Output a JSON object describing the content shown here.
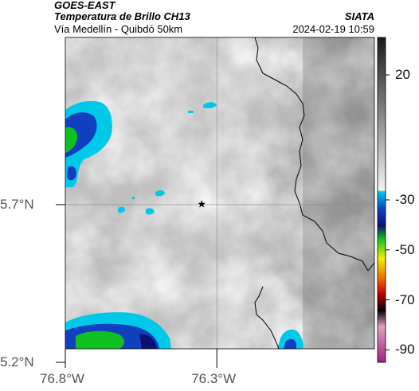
{
  "header": {
    "agency": "GOES-EAST",
    "product": "Temperatura de Brillo CH13",
    "region": "Vía Medellín - Quibdó 50km",
    "org": "SIATA",
    "datetime": "2024-02-19 10:59"
  },
  "axes": {
    "lat_ticks": [
      {
        "value": 5.7,
        "label": "5.7°N"
      },
      {
        "value": 5.2,
        "label": "5.2°N"
      }
    ],
    "lon_ticks": [
      {
        "value": -76.8,
        "label": "76.8°W"
      },
      {
        "value": -76.3,
        "label": "76.3°W"
      }
    ],
    "lat_range": [
      5.2,
      6.23
    ],
    "lon_range": [
      -76.8,
      -75.78
    ]
  },
  "colorbar": {
    "ticks": [
      {
        "value": 20,
        "label": "20"
      },
      {
        "value": -30,
        "label": "-30"
      },
      {
        "value": -50,
        "label": "-50"
      },
      {
        "value": -70,
        "label": "-70"
      },
      {
        "value": -90,
        "label": "-90"
      }
    ],
    "range": [
      -95,
      35
    ],
    "colors": {
      "warm_dark": "#1a1a1a",
      "warm_light": "#f2f2f2",
      "cyan": "#00c8e8",
      "blue": "#1040c0",
      "navy": "#101070",
      "green": "#10c020",
      "yellow": "#f0f000",
      "orange": "#f07000",
      "red": "#c00000",
      "black": "#000000",
      "pink": "#e0a0c0",
      "magenta": "#a02080"
    }
  },
  "marker": {
    "lon": -76.35,
    "lat": 5.7,
    "icon": "star-icon"
  }
}
